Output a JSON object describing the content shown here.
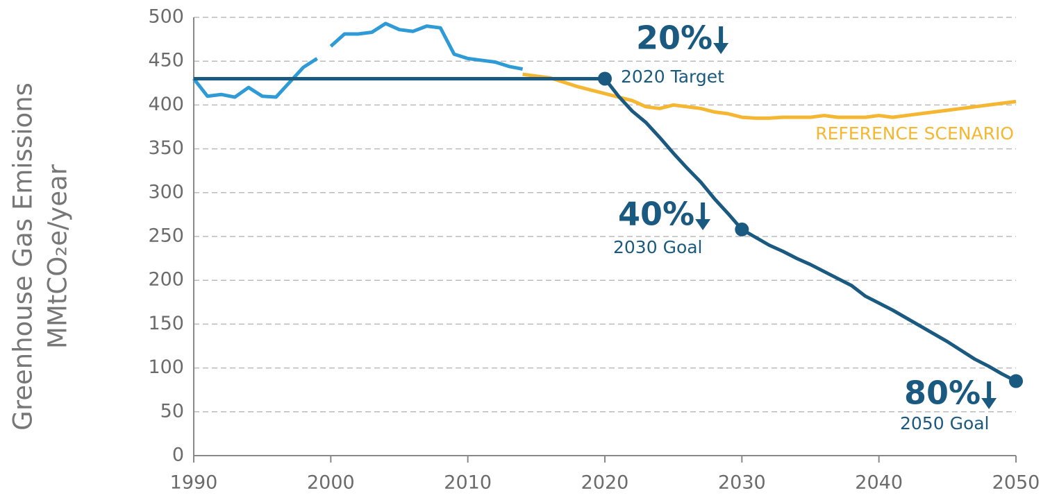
{
  "chart_data": {
    "type": "line",
    "ylabel": [
      "Greenhouse Gas Emissions",
      "MMtCO₂e/year"
    ],
    "xlim": [
      1990,
      2050
    ],
    "xticks": [
      1990,
      2000,
      2010,
      2020,
      2030,
      2040,
      2050
    ],
    "ylim": [
      0,
      500
    ],
    "yticks": [
      0,
      50,
      100,
      150,
      200,
      250,
      300,
      350,
      400,
      450,
      500
    ],
    "grid": true,
    "series": [
      {
        "color": "#2e9bd6",
        "x": [
          1990,
          1991,
          1992,
          1993,
          1994,
          1995,
          1996,
          1997,
          1998,
          1999,
          1999.5,
          2000,
          2001,
          2002,
          2003,
          2004,
          2005,
          2006,
          2007,
          2008,
          2009,
          2010,
          2011,
          2012,
          2013,
          2014
        ],
        "values": [
          430,
          410,
          412,
          409,
          420,
          410,
          409,
          426,
          443,
          453,
          null,
          467,
          481,
          481,
          483,
          493,
          486,
          484,
          490,
          488,
          458,
          453,
          451,
          449,
          444,
          441
        ]
      },
      {
        "name": "REFERENCE SCENARIO",
        "color": "#f5b731",
        "x": [
          2014,
          2015,
          2016,
          2017,
          2018,
          2019,
          2020,
          2021,
          2022,
          2023,
          2024,
          2025,
          2026,
          2027,
          2028,
          2029,
          2030,
          2031,
          2032,
          2033,
          2034,
          2035,
          2036,
          2037,
          2038,
          2039,
          2040,
          2041,
          2042,
          2043,
          2044,
          2045,
          2046,
          2047,
          2048,
          2049,
          2050
        ],
        "values": [
          435,
          433,
          431,
          426,
          421,
          417,
          413,
          409,
          405,
          398,
          396,
          400,
          398,
          396,
          392,
          390,
          386,
          385,
          385,
          386,
          386,
          386,
          388,
          386,
          386,
          386,
          388,
          386,
          388,
          390,
          392,
          394,
          396,
          398,
          400,
          402,
          404
        ]
      },
      {
        "color": "#1b5a80",
        "x": [
          1990,
          2020,
          2021,
          2022,
          2023,
          2024,
          2025,
          2026,
          2027,
          2028,
          2029,
          2030,
          2031,
          2032,
          2033,
          2034,
          2035,
          2036,
          2037,
          2038,
          2039,
          2040,
          2041,
          2042,
          2043,
          2044,
          2045,
          2046,
          2047,
          2048,
          2049,
          2050
        ],
        "values": [
          430,
          430,
          410,
          393,
          380,
          363,
          345,
          328,
          312,
          293,
          276,
          258,
          249,
          240,
          233,
          225,
          218,
          210,
          202,
          194,
          182,
          174,
          166,
          157,
          148,
          139,
          130,
          120,
          110,
          102,
          93,
          85
        ]
      }
    ],
    "milestones": [
      {
        "x": 2020,
        "value": 430,
        "percent": "20%",
        "label": "2020 Target"
      },
      {
        "x": 2030,
        "value": 258,
        "percent": "40%",
        "label": "2030 Goal"
      },
      {
        "x": 2050,
        "value": 85,
        "percent": "80%",
        "label": "2050 Goal"
      }
    ]
  }
}
